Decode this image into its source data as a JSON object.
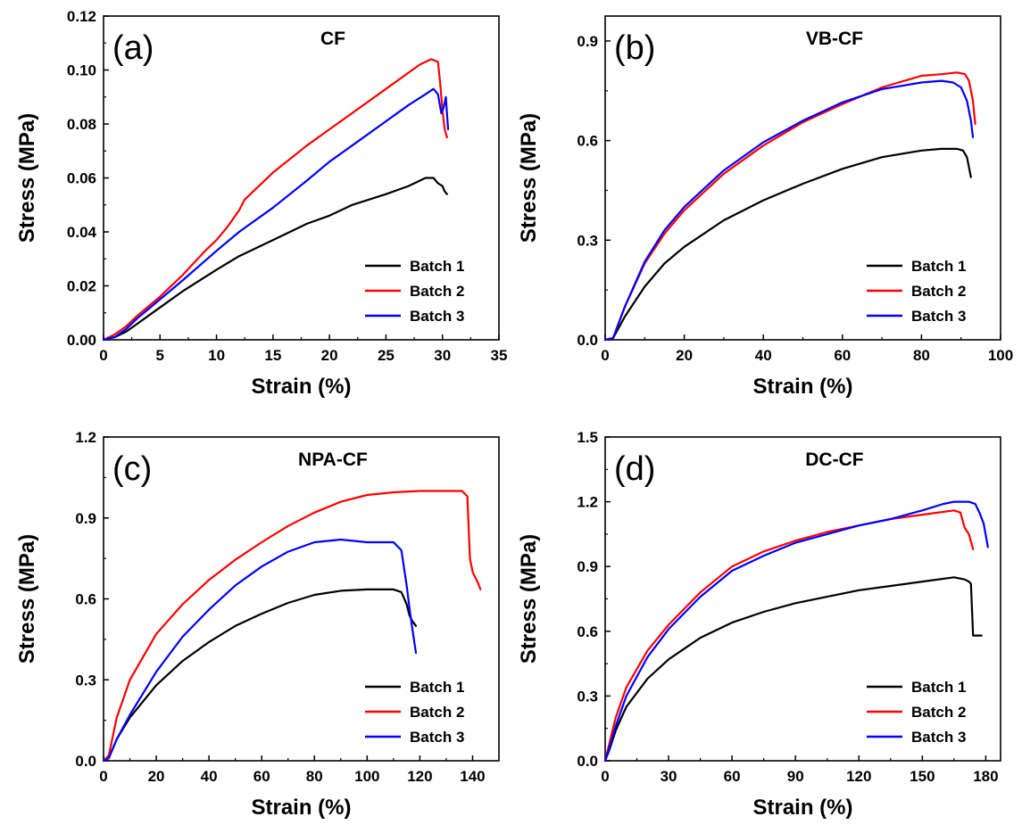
{
  "colors": {
    "batch1": "#000000",
    "batch2": "#ff0000",
    "batch3": "#0000ff"
  },
  "chart_data": [
    {
      "type": "line",
      "panel_label": "(a)",
      "title": "CF",
      "xlabel": "Strain (%)",
      "ylabel": "Stress (MPa)",
      "xlim": [
        0,
        35
      ],
      "ylim": [
        0,
        0.12
      ],
      "xticks": [
        0,
        5,
        10,
        15,
        20,
        25,
        30,
        35
      ],
      "xtick_labels": [
        "0",
        "5",
        "10",
        "15",
        "20",
        "25",
        "30",
        "35"
      ],
      "yticks": [
        0,
        0.02,
        0.04,
        0.06,
        0.08,
        0.1,
        0.12
      ],
      "ytick_labels": [
        "0.00",
        "0.02",
        "0.04",
        "0.06",
        "0.08",
        "0.10",
        "0.12"
      ],
      "legend_position": "bottom-right",
      "grid": false,
      "series": [
        {
          "name": "Batch 1",
          "color": "#000000",
          "x": [
            0,
            1,
            2,
            3,
            5,
            7,
            10,
            12,
            15,
            18,
            20,
            22,
            25,
            27,
            28.5,
            29.2,
            29.6,
            30,
            30.2,
            30.4
          ],
          "y": [
            0,
            0.001,
            0.003,
            0.006,
            0.012,
            0.018,
            0.026,
            0.031,
            0.037,
            0.043,
            0.046,
            0.05,
            0.054,
            0.057,
            0.06,
            0.06,
            0.058,
            0.057,
            0.055,
            0.054
          ]
        },
        {
          "name": "Batch 2",
          "color": "#ff0000",
          "x": [
            0,
            1,
            2,
            3,
            5,
            7,
            9,
            10,
            11,
            12,
            12.5,
            13,
            15,
            18,
            20,
            22,
            25,
            27,
            28,
            29,
            29.6,
            29.8,
            30,
            30.2,
            30.4
          ],
          "y": [
            0,
            0.002,
            0.005,
            0.009,
            0.016,
            0.024,
            0.033,
            0.037,
            0.042,
            0.048,
            0.052,
            0.054,
            0.062,
            0.072,
            0.078,
            0.084,
            0.093,
            0.099,
            0.102,
            0.104,
            0.103,
            0.095,
            0.085,
            0.078,
            0.075
          ]
        },
        {
          "name": "Batch 3",
          "color": "#0000ff",
          "x": [
            0,
            1,
            2,
            3,
            5,
            7,
            10,
            12,
            15,
            18,
            20,
            22,
            25,
            27,
            28.5,
            29.2,
            29.6,
            29.9,
            30.1,
            30.3,
            30.5
          ],
          "y": [
            0,
            0.001,
            0.004,
            0.008,
            0.015,
            0.022,
            0.033,
            0.04,
            0.049,
            0.059,
            0.066,
            0.072,
            0.081,
            0.087,
            0.091,
            0.093,
            0.091,
            0.084,
            0.086,
            0.09,
            0.078
          ]
        }
      ]
    },
    {
      "type": "line",
      "panel_label": "(b)",
      "title": "VB-CF",
      "xlabel": "Strain (%)",
      "ylabel": "Stress (MPa)",
      "xlim": [
        0,
        100
      ],
      "ylim": [
        0,
        0.975
      ],
      "xticks": [
        0,
        20,
        40,
        60,
        80,
        100
      ],
      "xtick_labels": [
        "0",
        "20",
        "40",
        "60",
        "80",
        "100"
      ],
      "yticks": [
        0,
        0.3,
        0.6,
        0.9
      ],
      "ytick_labels": [
        "0.0",
        "0.3",
        "0.6",
        "0.9"
      ],
      "legend_position": "bottom-right",
      "grid": false,
      "series": [
        {
          "name": "Batch 1",
          "color": "#000000",
          "x": [
            0,
            2,
            5,
            10,
            15,
            20,
            30,
            40,
            50,
            60,
            70,
            80,
            85,
            89,
            90.5,
            91.5,
            92.5
          ],
          "y": [
            0,
            0.005,
            0.07,
            0.16,
            0.23,
            0.28,
            0.36,
            0.42,
            0.47,
            0.515,
            0.55,
            0.57,
            0.575,
            0.575,
            0.57,
            0.55,
            0.49
          ]
        },
        {
          "name": "Batch 2",
          "color": "#ff0000",
          "x": [
            0,
            2,
            5,
            10,
            15,
            20,
            30,
            40,
            50,
            60,
            70,
            80,
            85,
            89,
            91,
            92,
            93,
            93.6
          ],
          "y": [
            0,
            0.005,
            0.1,
            0.23,
            0.32,
            0.39,
            0.5,
            0.585,
            0.655,
            0.71,
            0.76,
            0.795,
            0.8,
            0.805,
            0.8,
            0.78,
            0.72,
            0.65
          ]
        },
        {
          "name": "Batch 3",
          "color": "#0000ff",
          "x": [
            0,
            2,
            5,
            10,
            15,
            20,
            30,
            40,
            50,
            60,
            70,
            80,
            85,
            88,
            90,
            91.5,
            92.5,
            93
          ],
          "y": [
            0,
            0.005,
            0.1,
            0.235,
            0.33,
            0.4,
            0.51,
            0.595,
            0.66,
            0.715,
            0.755,
            0.775,
            0.78,
            0.775,
            0.76,
            0.72,
            0.66,
            0.61
          ]
        }
      ]
    },
    {
      "type": "line",
      "panel_label": "(c)",
      "title": "NPA-CF",
      "xlabel": "Strain (%)",
      "ylabel": "Stress (MPa)",
      "xlim": [
        0,
        150
      ],
      "ylim": [
        0,
        1.2
      ],
      "xticks": [
        0,
        20,
        40,
        60,
        80,
        100,
        120,
        140
      ],
      "xtick_labels": [
        "0",
        "20",
        "40",
        "60",
        "80",
        "100",
        "120",
        "140"
      ],
      "yticks": [
        0,
        0.3,
        0.6,
        0.9,
        1.2
      ],
      "ytick_labels": [
        "0.0",
        "0.3",
        "0.6",
        "0.9",
        "1.2"
      ],
      "legend_position": "bottom-right",
      "grid": false,
      "series": [
        {
          "name": "Batch 1",
          "color": "#000000",
          "x": [
            0,
            2,
            5,
            10,
            20,
            30,
            40,
            50,
            60,
            70,
            80,
            90,
            100,
            110,
            113,
            115,
            116,
            117,
            118.5
          ],
          "y": [
            0,
            0.01,
            0.08,
            0.16,
            0.28,
            0.37,
            0.44,
            0.5,
            0.545,
            0.585,
            0.615,
            0.63,
            0.635,
            0.635,
            0.625,
            0.58,
            0.54,
            0.52,
            0.5
          ]
        },
        {
          "name": "Batch 2",
          "color": "#ff0000",
          "x": [
            0,
            2,
            5,
            10,
            20,
            30,
            40,
            50,
            60,
            70,
            80,
            90,
            100,
            110,
            120,
            130,
            136,
            138,
            139,
            140,
            142,
            143
          ],
          "y": [
            0,
            0.02,
            0.16,
            0.3,
            0.47,
            0.58,
            0.67,
            0.745,
            0.81,
            0.87,
            0.92,
            0.96,
            0.985,
            0.995,
            1.0,
            1.0,
            1.0,
            0.98,
            0.75,
            0.7,
            0.66,
            0.635
          ]
        },
        {
          "name": "Batch 3",
          "color": "#0000ff",
          "x": [
            0,
            2,
            5,
            10,
            20,
            30,
            40,
            50,
            60,
            70,
            80,
            90,
            100,
            110,
            113,
            115,
            116,
            117,
            118.5
          ],
          "y": [
            0,
            0.01,
            0.08,
            0.17,
            0.33,
            0.46,
            0.56,
            0.65,
            0.72,
            0.775,
            0.81,
            0.82,
            0.81,
            0.81,
            0.78,
            0.65,
            0.57,
            0.5,
            0.4
          ]
        }
      ]
    },
    {
      "type": "line",
      "panel_label": "(d)",
      "title": "DC-CF",
      "xlabel": "Strain (%)",
      "ylabel": "Stress (MPa)",
      "xlim": [
        0,
        187
      ],
      "ylim": [
        0,
        1.5
      ],
      "xticks": [
        0,
        30,
        60,
        90,
        120,
        150,
        180
      ],
      "xtick_labels": [
        "0",
        "30",
        "60",
        "90",
        "120",
        "150",
        "180"
      ],
      "yticks": [
        0,
        0.3,
        0.6,
        0.9,
        1.2,
        1.5
      ],
      "ytick_labels": [
        "0.0",
        "0.3",
        "0.6",
        "0.9",
        "1.2",
        "1.5"
      ],
      "legend_position": "bottom-right",
      "grid": false,
      "series": [
        {
          "name": "Batch 1",
          "color": "#000000",
          "x": [
            0,
            2,
            5,
            10,
            20,
            30,
            45,
            60,
            75,
            90,
            105,
            120,
            135,
            150,
            165,
            170,
            172,
            173,
            174,
            175,
            176,
            178
          ],
          "y": [
            0,
            0.05,
            0.14,
            0.25,
            0.38,
            0.47,
            0.57,
            0.64,
            0.69,
            0.73,
            0.76,
            0.79,
            0.81,
            0.83,
            0.85,
            0.84,
            0.83,
            0.82,
            0.58,
            0.58,
            0.58,
            0.58
          ]
        },
        {
          "name": "Batch 2",
          "color": "#ff0000",
          "x": [
            0,
            2,
            5,
            10,
            20,
            30,
            45,
            60,
            75,
            90,
            105,
            120,
            135,
            150,
            165,
            168,
            170,
            172,
            174
          ],
          "y": [
            0,
            0.08,
            0.2,
            0.34,
            0.51,
            0.63,
            0.78,
            0.9,
            0.97,
            1.02,
            1.06,
            1.09,
            1.12,
            1.14,
            1.16,
            1.15,
            1.08,
            1.05,
            0.98
          ]
        },
        {
          "name": "Batch 3",
          "color": "#0000ff",
          "x": [
            0,
            2,
            5,
            10,
            20,
            30,
            45,
            60,
            75,
            90,
            105,
            120,
            135,
            150,
            160,
            165,
            172,
            175,
            177,
            179,
            181
          ],
          "y": [
            0,
            0.06,
            0.16,
            0.3,
            0.48,
            0.61,
            0.76,
            0.88,
            0.95,
            1.01,
            1.05,
            1.09,
            1.12,
            1.16,
            1.19,
            1.2,
            1.2,
            1.19,
            1.15,
            1.1,
            0.99
          ]
        }
      ]
    }
  ]
}
